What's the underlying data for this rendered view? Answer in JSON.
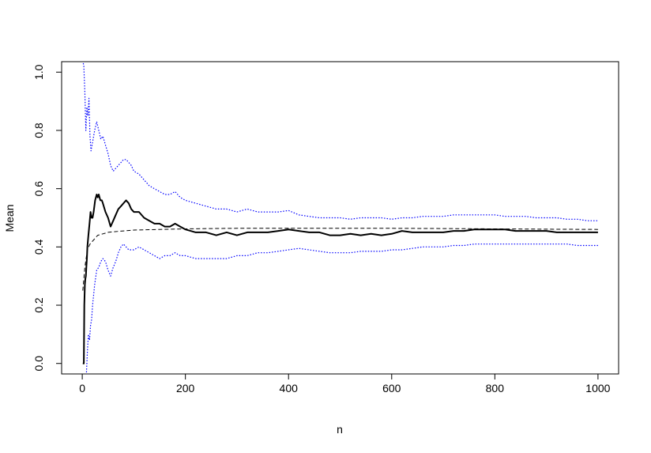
{
  "chart_data": {
    "type": "line",
    "title": "",
    "xlabel": "n",
    "ylabel": "Mean",
    "xlim": [
      -40,
      1040
    ],
    "ylim": [
      -0.036,
      1.036
    ],
    "xticks": [
      0,
      200,
      400,
      600,
      800,
      1000
    ],
    "xtick_labels": [
      "0",
      "200",
      "400",
      "600",
      "800",
      "1000"
    ],
    "yticks": [
      0.0,
      0.2,
      0.4,
      0.6,
      0.8,
      1.0
    ],
    "ytick_labels": [
      "0.0",
      "0.2",
      "0.4",
      "0.6",
      "0.8",
      "1.0"
    ],
    "grid": false,
    "legend": "none",
    "series": [
      {
        "style": "solid",
        "color": "#000000",
        "x": [
          1,
          2,
          3,
          4,
          5,
          6,
          7,
          8,
          9,
          10,
          12,
          14,
          16,
          18,
          20,
          22,
          25,
          28,
          30,
          32,
          35,
          38,
          40,
          45,
          50,
          55,
          60,
          65,
          70,
          75,
          80,
          85,
          90,
          95,
          100,
          110,
          120,
          130,
          140,
          150,
          160,
          170,
          180,
          190,
          200,
          220,
          240,
          260,
          280,
          300,
          320,
          340,
          360,
          380,
          400,
          420,
          440,
          460,
          480,
          500,
          520,
          540,
          560,
          580,
          600,
          620,
          640,
          660,
          680,
          700,
          720,
          740,
          760,
          780,
          800,
          820,
          840,
          860,
          880,
          900,
          920,
          940,
          960,
          980,
          1000
        ],
        "values": [
          0.0,
          0.0,
          0.0,
          0.2,
          0.27,
          0.29,
          0.3,
          0.33,
          0.36,
          0.4,
          0.44,
          0.48,
          0.52,
          0.5,
          0.5,
          0.52,
          0.56,
          0.58,
          0.57,
          0.58,
          0.56,
          0.56,
          0.55,
          0.52,
          0.5,
          0.47,
          0.49,
          0.51,
          0.53,
          0.54,
          0.55,
          0.56,
          0.55,
          0.53,
          0.52,
          0.52,
          0.5,
          0.49,
          0.48,
          0.48,
          0.47,
          0.47,
          0.48,
          0.47,
          0.46,
          0.45,
          0.45,
          0.44,
          0.45,
          0.44,
          0.45,
          0.45,
          0.45,
          0.455,
          0.46,
          0.455,
          0.45,
          0.45,
          0.44,
          0.44,
          0.445,
          0.44,
          0.445,
          0.44,
          0.445,
          0.455,
          0.45,
          0.45,
          0.45,
          0.45,
          0.455,
          0.455,
          0.46,
          0.46,
          0.46,
          0.46,
          0.455,
          0.455,
          0.455,
          0.455,
          0.45,
          0.45,
          0.45,
          0.45,
          0.45
        ]
      },
      {
        "style": "dashed",
        "color": "#000000",
        "x": [
          1,
          5,
          10,
          15,
          20,
          25,
          30,
          40,
          50,
          60,
          80,
          100,
          150,
          200,
          250,
          300,
          400,
          500,
          600,
          700,
          800,
          900,
          1000
        ],
        "values": [
          0.25,
          0.33,
          0.39,
          0.41,
          0.42,
          0.43,
          0.44,
          0.445,
          0.45,
          0.452,
          0.455,
          0.458,
          0.46,
          0.462,
          0.463,
          0.464,
          0.464,
          0.464,
          0.464,
          0.463,
          0.462,
          0.461,
          0.46
        ]
      },
      {
        "style": "dotted",
        "color": "#0000ff",
        "x": [
          1,
          3,
          5,
          7,
          9,
          11,
          13,
          15,
          17,
          20,
          24,
          28,
          32,
          36,
          40,
          45,
          50,
          55,
          60,
          65,
          70,
          75,
          80,
          85,
          90,
          95,
          100,
          110,
          120,
          130,
          140,
          150,
          160,
          170,
          180,
          190,
          200,
          220,
          240,
          260,
          280,
          300,
          320,
          340,
          360,
          380,
          400,
          420,
          440,
          460,
          480,
          500,
          520,
          540,
          560,
          580,
          600,
          620,
          640,
          660,
          680,
          700,
          720,
          740,
          760,
          780,
          800,
          820,
          840,
          860,
          880,
          900,
          920,
          940,
          960,
          980,
          1000
        ],
        "values": [
          1.04,
          1.02,
          0.93,
          0.8,
          0.88,
          0.85,
          0.91,
          0.78,
          0.73,
          0.76,
          0.8,
          0.83,
          0.8,
          0.77,
          0.78,
          0.75,
          0.72,
          0.68,
          0.66,
          0.67,
          0.68,
          0.69,
          0.7,
          0.7,
          0.69,
          0.68,
          0.66,
          0.65,
          0.63,
          0.61,
          0.6,
          0.59,
          0.58,
          0.58,
          0.59,
          0.57,
          0.56,
          0.55,
          0.54,
          0.53,
          0.53,
          0.52,
          0.53,
          0.52,
          0.52,
          0.52,
          0.525,
          0.51,
          0.505,
          0.5,
          0.5,
          0.5,
          0.495,
          0.5,
          0.5,
          0.5,
          0.495,
          0.5,
          0.5,
          0.505,
          0.505,
          0.505,
          0.51,
          0.51,
          0.51,
          0.51,
          0.51,
          0.505,
          0.505,
          0.505,
          0.5,
          0.5,
          0.5,
          0.495,
          0.495,
          0.49,
          0.49
        ]
      },
      {
        "style": "dotted",
        "color": "#0000ff",
        "x": [
          8,
          10,
          12,
          14,
          16,
          18,
          20,
          24,
          28,
          32,
          36,
          40,
          45,
          50,
          55,
          60,
          65,
          70,
          75,
          80,
          85,
          90,
          95,
          100,
          110,
          120,
          130,
          140,
          150,
          160,
          170,
          180,
          190,
          200,
          220,
          240,
          260,
          280,
          300,
          320,
          340,
          360,
          380,
          400,
          420,
          440,
          460,
          480,
          500,
          520,
          540,
          560,
          580,
          600,
          620,
          640,
          660,
          680,
          700,
          720,
          740,
          760,
          780,
          800,
          820,
          840,
          860,
          880,
          900,
          920,
          940,
          960,
          980,
          1000
        ],
        "values": [
          -0.04,
          0.04,
          0.1,
          0.08,
          0.13,
          0.15,
          0.2,
          0.27,
          0.32,
          0.33,
          0.35,
          0.36,
          0.35,
          0.32,
          0.3,
          0.33,
          0.35,
          0.38,
          0.4,
          0.41,
          0.4,
          0.39,
          0.39,
          0.39,
          0.4,
          0.39,
          0.38,
          0.37,
          0.36,
          0.37,
          0.37,
          0.38,
          0.37,
          0.37,
          0.36,
          0.36,
          0.36,
          0.36,
          0.37,
          0.37,
          0.38,
          0.38,
          0.385,
          0.39,
          0.395,
          0.39,
          0.385,
          0.38,
          0.38,
          0.38,
          0.385,
          0.385,
          0.385,
          0.39,
          0.39,
          0.395,
          0.4,
          0.4,
          0.4,
          0.405,
          0.405,
          0.41,
          0.41,
          0.41,
          0.41,
          0.41,
          0.41,
          0.41,
          0.41,
          0.41,
          0.41,
          0.405,
          0.405,
          0.405
        ]
      }
    ]
  }
}
